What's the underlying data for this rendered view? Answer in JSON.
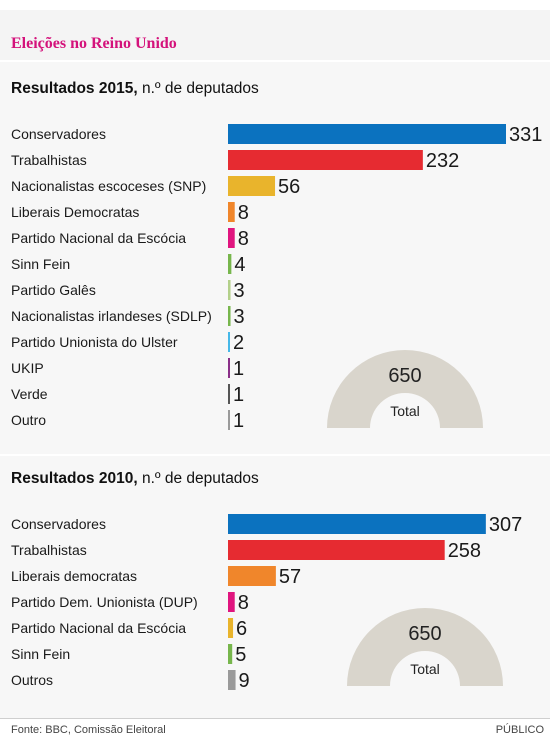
{
  "header": {
    "title": "Eleições no Reino Unido"
  },
  "colors": {
    "blue": "#0b72bf",
    "red": "#e62b31",
    "yellow": "#e9b42c",
    "orange": "#f0862b",
    "pink": "#e0157f",
    "green": "#77b64c",
    "lightgreen": "#b3d08a",
    "cyan": "#46b8e8",
    "purple": "#8a2f88",
    "darkgray": "#555555",
    "gray": "#9a9a9a",
    "gauge": "#d9d5cc"
  },
  "chart_data": [
    {
      "type": "bar",
      "title_bold": "Resultados 2015,",
      "title_rest": " n.º de deputados",
      "categories": [
        "Conservadores",
        "Trabalhistas",
        "Nacionalistas escoceses (SNP)",
        "Liberais Democratas",
        "Partido Nacional da Escócia",
        "Sinn Fein",
        "Partido Galês",
        "Nacionalistas irlandeses (SDLP)",
        "Partido Unionista do Ulster",
        "UKIP",
        "Verde",
        "Outro"
      ],
      "values": [
        331,
        232,
        56,
        8,
        8,
        4,
        3,
        3,
        2,
        1,
        1,
        1
      ],
      "bar_colors": [
        "#0b72bf",
        "#e62b31",
        "#e9b42c",
        "#f0862b",
        "#e0157f",
        "#77b64c",
        "#b3d08a",
        "#77b64c",
        "#46b8e8",
        "#8a2f88",
        "#555555",
        "#9a9a9a"
      ],
      "total": {
        "value": "650",
        "label": "Total"
      }
    },
    {
      "type": "bar",
      "title_bold": "Resultados 2010,",
      "title_rest": " n.º de deputados",
      "categories": [
        "Conservadores",
        "Trabalhistas",
        "Liberais democratas",
        "Partido Dem. Unionista (DUP)",
        "Partido Nacional da Escócia",
        "Sinn Fein",
        "Outros"
      ],
      "values": [
        307,
        258,
        57,
        8,
        6,
        5,
        9
      ],
      "bar_colors": [
        "#0b72bf",
        "#e62b31",
        "#f0862b",
        "#e0157f",
        "#e9b42c",
        "#77b64c",
        "#9a9a9a"
      ],
      "total": {
        "value": "650",
        "label": "Total"
      }
    }
  ],
  "footer": {
    "source": "Fonte: BBC, Comissão Eleitoral",
    "brand": "PÚBLICO"
  }
}
